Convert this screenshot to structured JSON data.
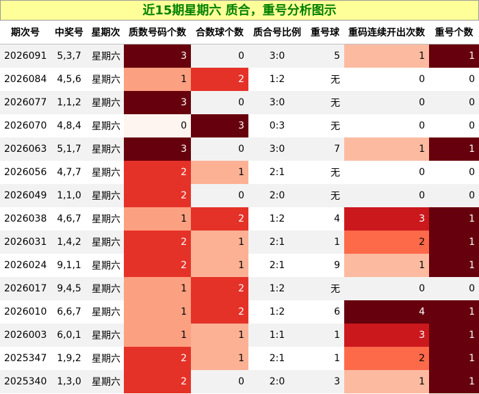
{
  "title": "近15期星期六 质合，重号分析图示",
  "chart_data": {
    "type": "table",
    "columns": [
      "期次号",
      "中奖号",
      "星期次",
      "质数号码个数",
      "合数球个数",
      "质合号比例",
      "重号球",
      "重码连续开出次数",
      "重号个数"
    ],
    "rows": [
      [
        "2026091",
        "5,3,7",
        "星期六",
        3,
        0,
        "3:0",
        "5",
        1,
        1
      ],
      [
        "2026084",
        "4,5,6",
        "星期六",
        1,
        2,
        "1:2",
        "无",
        0,
        0
      ],
      [
        "2026077",
        "1,1,2",
        "星期六",
        3,
        0,
        "3:0",
        "无",
        0,
        0
      ],
      [
        "2026070",
        "4,8,4",
        "星期六",
        0,
        3,
        "0:3",
        "无",
        0,
        0
      ],
      [
        "2026063",
        "5,1,7",
        "星期六",
        3,
        0,
        "3:0",
        "7",
        1,
        1
      ],
      [
        "2026056",
        "4,7,7",
        "星期六",
        2,
        1,
        "2:1",
        "无",
        0,
        0
      ],
      [
        "2026049",
        "1,1,0",
        "星期六",
        2,
        0,
        "2:0",
        "无",
        0,
        0
      ],
      [
        "2026038",
        "4,6,7",
        "星期六",
        1,
        2,
        "1:2",
        "4",
        3,
        1
      ],
      [
        "2026031",
        "1,4,2",
        "星期六",
        2,
        1,
        "2:1",
        "1",
        2,
        1
      ],
      [
        "2026024",
        "9,1,1",
        "星期六",
        2,
        1,
        "2:1",
        "9",
        1,
        1
      ],
      [
        "2026017",
        "9,4,5",
        "星期六",
        1,
        2,
        "1:2",
        "无",
        0,
        0
      ],
      [
        "2026010",
        "6,6,7",
        "星期六",
        1,
        2,
        "1:2",
        "6",
        4,
        1
      ],
      [
        "2026003",
        "6,0,1",
        "星期六",
        1,
        1,
        "1:1",
        "1",
        3,
        1
      ],
      [
        "2025347",
        "1,9,2",
        "星期六",
        2,
        1,
        "2:1",
        "1",
        2,
        1
      ],
      [
        "2025340",
        "1,3,0",
        "星期六",
        2,
        0,
        "2:0",
        "3",
        1,
        1
      ]
    ],
    "heat_colors": {
      "prime": {
        "0": "#fff5f0",
        "1": "#fca082",
        "2": "#e53228",
        "3": "#67000d"
      },
      "composite": {
        "0": "",
        "1": "#fcb195",
        "2": "#e53228",
        "3": "#67000d"
      },
      "repeat_run": {
        "0": "",
        "1": "#fcbba1",
        "2": "#fc6a4a",
        "3": "#cb181d",
        "4": "#67000d"
      },
      "repeat_count": {
        "0": "",
        "1": "#67000d"
      }
    },
    "heat_text_colors": {
      "dark": "#ffffff",
      "light": "#000000"
    }
  }
}
